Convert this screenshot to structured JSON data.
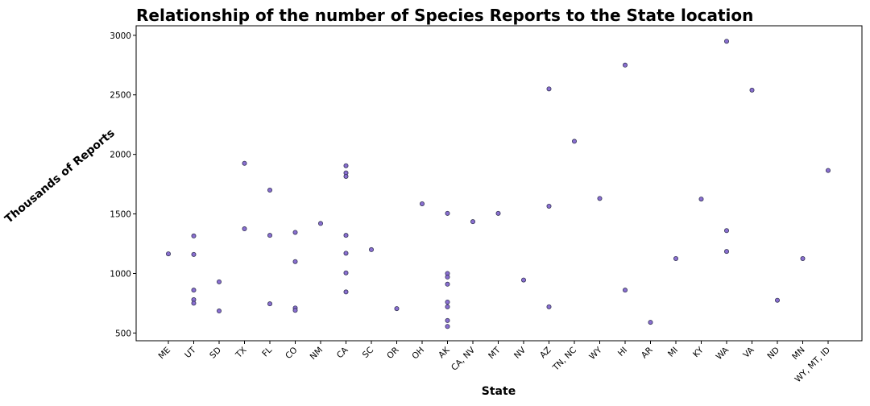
{
  "chart_data": {
    "type": "scatter",
    "title": "Relationship of the number of Species Reports to the State location",
    "xlabel": "State",
    "ylabel": "Thousands of Reports",
    "categories": [
      "ME",
      "UT",
      "SD",
      "TX",
      "FL",
      "CO",
      "NM",
      "CA",
      "SC",
      "OR",
      "OH",
      "AK",
      "CA, NV",
      "MT",
      "NV",
      "AZ",
      "TN, NC",
      "WY",
      "HI",
      "AR",
      "MI",
      "KY",
      "WA",
      "VA",
      "ND",
      "MN",
      "WY, MT, ID"
    ],
    "ylim": [
      435,
      3080
    ],
    "yticks": [
      500,
      1000,
      1500,
      2000,
      2500,
      3000
    ],
    "grid": false,
    "marker_color": "#8a6fd1",
    "marker_edge_color": "#333355",
    "points": [
      {
        "x": "ME",
        "y": 1165
      },
      {
        "x": "UT",
        "y": 1315
      },
      {
        "x": "UT",
        "y": 1160
      },
      {
        "x": "UT",
        "y": 860
      },
      {
        "x": "UT",
        "y": 780
      },
      {
        "x": "UT",
        "y": 750
      },
      {
        "x": "SD",
        "y": 930
      },
      {
        "x": "SD",
        "y": 685
      },
      {
        "x": "TX",
        "y": 1925
      },
      {
        "x": "TX",
        "y": 1375
      },
      {
        "x": "FL",
        "y": 1700
      },
      {
        "x": "FL",
        "y": 1320
      },
      {
        "x": "FL",
        "y": 745
      },
      {
        "x": "CO",
        "y": 1345
      },
      {
        "x": "CO",
        "y": 1100
      },
      {
        "x": "CO",
        "y": 710
      },
      {
        "x": "CO",
        "y": 690
      },
      {
        "x": "NM",
        "y": 1420
      },
      {
        "x": "CA",
        "y": 1905
      },
      {
        "x": "CA",
        "y": 1845
      },
      {
        "x": "CA",
        "y": 1815
      },
      {
        "x": "CA",
        "y": 1320
      },
      {
        "x": "CA",
        "y": 1170
      },
      {
        "x": "CA",
        "y": 1005
      },
      {
        "x": "CA",
        "y": 845
      },
      {
        "x": "SC",
        "y": 1200
      },
      {
        "x": "OR",
        "y": 705
      },
      {
        "x": "OH",
        "y": 1585
      },
      {
        "x": "AK",
        "y": 1505
      },
      {
        "x": "AK",
        "y": 1000
      },
      {
        "x": "AK",
        "y": 970
      },
      {
        "x": "AK",
        "y": 910
      },
      {
        "x": "AK",
        "y": 760
      },
      {
        "x": "AK",
        "y": 720
      },
      {
        "x": "AK",
        "y": 605
      },
      {
        "x": "AK",
        "y": 555
      },
      {
        "x": "CA, NV",
        "y": 1435
      },
      {
        "x": "MT",
        "y": 1505
      },
      {
        "x": "NV",
        "y": 945
      },
      {
        "x": "AZ",
        "y": 2550
      },
      {
        "x": "AZ",
        "y": 1565
      },
      {
        "x": "AZ",
        "y": 720
      },
      {
        "x": "TN, NC",
        "y": 2110
      },
      {
        "x": "WY",
        "y": 1630
      },
      {
        "x": "HI",
        "y": 2750
      },
      {
        "x": "HI",
        "y": 860
      },
      {
        "x": "AR",
        "y": 590
      },
      {
        "x": "MI",
        "y": 1125
      },
      {
        "x": "KY",
        "y": 1625
      },
      {
        "x": "WA",
        "y": 2950
      },
      {
        "x": "WA",
        "y": 1360
      },
      {
        "x": "WA",
        "y": 1185
      },
      {
        "x": "VA",
        "y": 2540
      },
      {
        "x": "ND",
        "y": 775
      },
      {
        "x": "MN",
        "y": 1125
      },
      {
        "x": "WY, MT, ID",
        "y": 1865
      }
    ]
  }
}
